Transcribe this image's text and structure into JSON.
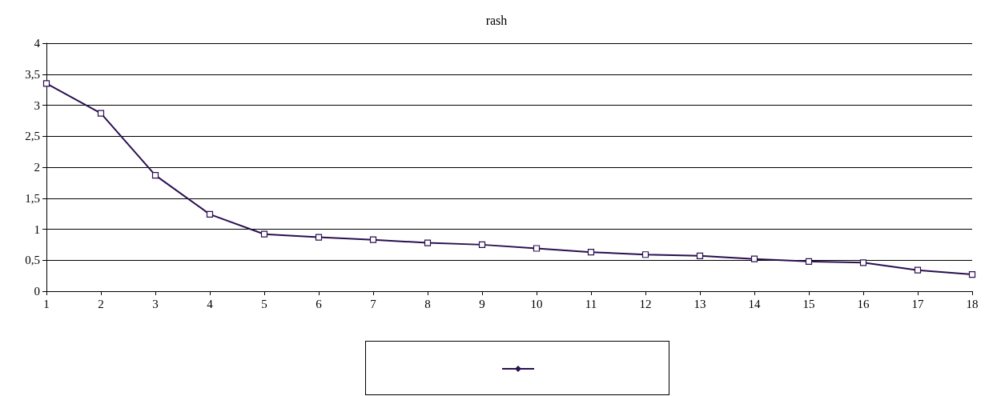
{
  "chart_data": {
    "type": "line",
    "title": "rash",
    "x": [
      1,
      2,
      3,
      4,
      5,
      6,
      7,
      8,
      9,
      10,
      11,
      12,
      13,
      14,
      15,
      16,
      17,
      18
    ],
    "series": [
      {
        "color": "#2a1050",
        "values": [
          3.35,
          2.87,
          1.87,
          1.24,
          0.92,
          0.87,
          0.83,
          0.78,
          0.75,
          0.69,
          0.63,
          0.59,
          0.57,
          0.52,
          0.48,
          0.46,
          0.34,
          0.27
        ]
      }
    ],
    "xlim": [
      1,
      18
    ],
    "xticks": [
      1,
      2,
      3,
      4,
      5,
      6,
      7,
      8,
      9,
      10,
      11,
      12,
      13,
      14,
      15,
      16,
      17,
      18
    ],
    "ylim": [
      0,
      4
    ],
    "yticks": [
      {
        "value": 0,
        "label": "0"
      },
      {
        "value": 0.5,
        "label": "0,5"
      },
      {
        "value": 1,
        "label": "1"
      },
      {
        "value": 1.5,
        "label": "1,5"
      },
      {
        "value": 2,
        "label": "2"
      },
      {
        "value": 2.5,
        "label": "2,5"
      },
      {
        "value": 3,
        "label": "3"
      },
      {
        "value": 3.5,
        "label": "3,5"
      },
      {
        "value": 4,
        "label": "4"
      }
    ],
    "grid": "y",
    "marker": "square",
    "line_style": "solid"
  }
}
